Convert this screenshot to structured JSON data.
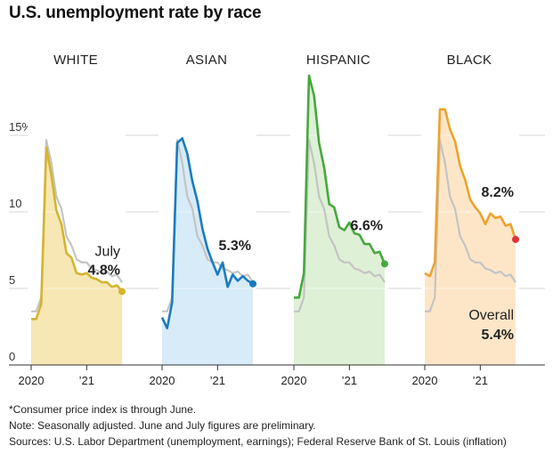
{
  "title": "U.S. unemployment rate by race",
  "chart_data": {
    "type": "line",
    "ylim": [
      0,
      16
    ],
    "y_ticks": [
      0,
      5,
      10,
      15
    ],
    "y_tick_labels": [
      "0",
      "5",
      "10",
      "15%"
    ],
    "x_tick_labels": [
      "2020",
      "’21"
    ],
    "grid": true,
    "overall_series": {
      "name": "Overall",
      "values": [
        3.5,
        3.5,
        4.4,
        14.7,
        13.2,
        11.0,
        10.2,
        8.4,
        7.8,
        6.9,
        6.7,
        6.7,
        6.3,
        6.2,
        6.0,
        6.1,
        5.8,
        5.9,
        5.4
      ]
    },
    "panels": [
      {
        "name": "WHITE",
        "color": "#d4b430",
        "fill": "#f7e7b4",
        "values": [
          3.0,
          3.0,
          4.0,
          14.2,
          12.4,
          10.1,
          9.2,
          7.3,
          7.0,
          6.0,
          5.9,
          6.0,
          5.7,
          5.6,
          5.4,
          5.4,
          5.1,
          5.2,
          4.8
        ],
        "label_lines": [
          "July",
          "4.8%"
        ],
        "end_dot_color": "#d4b430"
      },
      {
        "name": "ASIAN",
        "color": "#1a7bbf",
        "fill": "#d7ebf8",
        "values": [
          3.1,
          2.4,
          4.1,
          14.5,
          14.8,
          13.8,
          12.0,
          10.7,
          8.9,
          7.6,
          6.7,
          5.9,
          6.7,
          5.1,
          5.9,
          5.5,
          5.8,
          5.5,
          5.3
        ],
        "label_lines": [
          "5.3%"
        ],
        "end_dot_color": "#1a7bbf"
      },
      {
        "name": "HISPANIC",
        "color": "#46a83d",
        "fill": "#def0d6",
        "values": [
          4.4,
          4.4,
          6.0,
          18.9,
          17.6,
          14.5,
          12.9,
          10.5,
          10.3,
          9.0,
          8.8,
          9.3,
          8.6,
          8.5,
          7.9,
          7.9,
          7.3,
          7.4,
          6.6
        ],
        "label_lines": [
          "6.6%"
        ],
        "end_dot_color": "#46a83d"
      },
      {
        "name": "BLACK",
        "color": "#eea22c",
        "fill": "#fde6c8",
        "values": [
          6.0,
          5.8,
          6.7,
          16.7,
          16.7,
          15.4,
          14.6,
          13.0,
          12.1,
          10.8,
          10.3,
          9.9,
          9.2,
          9.9,
          9.6,
          9.7,
          9.1,
          9.2,
          8.2
        ],
        "label_lines": [
          "8.2%"
        ],
        "end_dot_color": "#e0333a",
        "overall_label_lines": [
          "Overall",
          "5.4%"
        ]
      }
    ]
  },
  "notes": [
    "*Consumer price index is through June.",
    "Note: Seasonally adjusted. June and July figures are preliminary.",
    "Sources: U.S. Labor Department (unemployment, earnings); Federal Reserve Bank of St. Louis (inflation)"
  ]
}
